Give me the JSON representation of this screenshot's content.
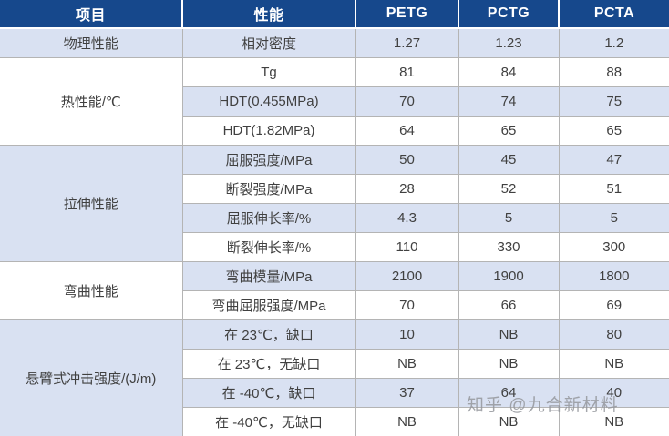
{
  "table": {
    "headers": [
      "项目",
      "性能",
      "PETG",
      "PCTG",
      "PCTA"
    ],
    "groups": [
      {
        "name": "物理性能",
        "rows": [
          {
            "property": "相对密度",
            "values": [
              "1.27",
              "1.23",
              "1.2"
            ]
          }
        ]
      },
      {
        "name": "热性能/℃",
        "rows": [
          {
            "property": "Tg",
            "values": [
              "81",
              "84",
              "88"
            ]
          },
          {
            "property": "HDT(0.455MPa)",
            "values": [
              "70",
              "74",
              "75"
            ]
          },
          {
            "property": "HDT(1.82MPa)",
            "values": [
              "64",
              "65",
              "65"
            ]
          }
        ]
      },
      {
        "name": "拉伸性能",
        "rows": [
          {
            "property": "屈服强度/MPa",
            "values": [
              "50",
              "45",
              "47"
            ]
          },
          {
            "property": "断裂强度/MPa",
            "values": [
              "28",
              "52",
              "51"
            ]
          },
          {
            "property": "屈服伸长率/%",
            "values": [
              "4.3",
              "5",
              "5"
            ]
          },
          {
            "property": "断裂伸长率/%",
            "values": [
              "110",
              "330",
              "300"
            ]
          }
        ]
      },
      {
        "name": "弯曲性能",
        "rows": [
          {
            "property": "弯曲模量/MPa",
            "values": [
              "2100",
              "1900",
              "1800"
            ]
          },
          {
            "property": "弯曲屈服强度/MPa",
            "values": [
              "70",
              "66",
              "69"
            ]
          }
        ]
      },
      {
        "name": "悬臂式冲击强度/(J/m)",
        "rows": [
          {
            "property": "在 23℃，缺口",
            "values": [
              "10",
              "NB",
              "80"
            ]
          },
          {
            "property": "在 23℃，无缺口",
            "values": [
              "NB",
              "NB",
              "NB"
            ]
          },
          {
            "property": "在 -40℃，缺口",
            "values": [
              "37",
              "64",
              "40"
            ]
          },
          {
            "property": "在 -40℃，无缺口",
            "values": [
              "NB",
              "NB",
              "NB"
            ]
          }
        ]
      }
    ]
  },
  "watermark": "知乎 @九合新材料",
  "colors": {
    "header_bg": "#16488c",
    "row_shade": "#d9e1f2",
    "row_white": "#ffffff",
    "border": "#b4b4b4",
    "text": "#404040",
    "header_text": "#ffffff"
  }
}
